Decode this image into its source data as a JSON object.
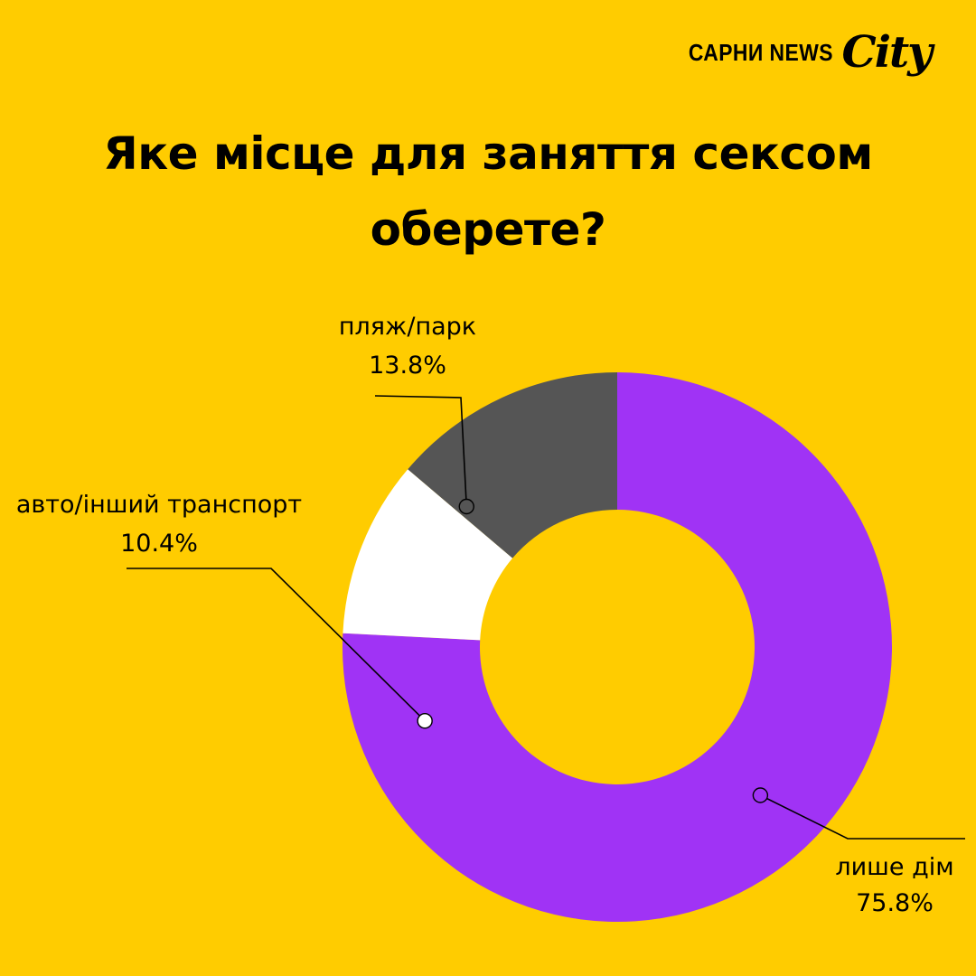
{
  "brand": {
    "name": "САРНИ NEWS",
    "script": "City"
  },
  "chart_data": {
    "type": "pie",
    "donut": true,
    "title": "Яке місце для заняття сексом оберете?",
    "slices": [
      {
        "label": "лише дім",
        "value": 75.8,
        "display": "75.8%",
        "color": "#A033F5"
      },
      {
        "label": "авто/інший транспорт",
        "value": 10.4,
        "display": "10.4%",
        "color": "#FFFFFF"
      },
      {
        "label": "пляж/парк",
        "value": 13.8,
        "display": "13.8%",
        "color": "#555555"
      }
    ],
    "legend": "none"
  },
  "colors": {
    "background": "#FFCC00",
    "text": "#000000"
  }
}
